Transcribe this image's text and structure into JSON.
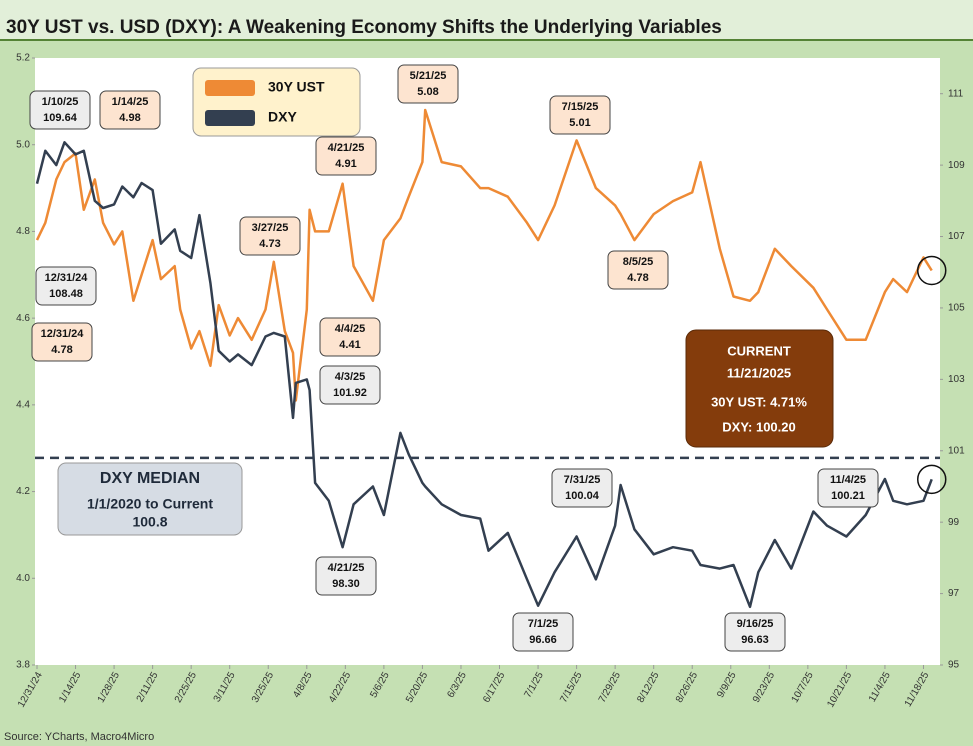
{
  "chart_data": {
    "type": "line",
    "title": "30Y UST vs. USD (DXY): A Weakening Economy Shifts the Underlying Variables",
    "source": "Source: YCharts, Macro4Micro",
    "x": [
      "2024-12-31",
      "2025-01-03",
      "2025-01-07",
      "2025-01-10",
      "2025-01-14",
      "2025-01-17",
      "2025-01-21",
      "2025-01-24",
      "2025-01-28",
      "2025-01-31",
      "2025-02-04",
      "2025-02-07",
      "2025-02-11",
      "2025-02-14",
      "2025-02-19",
      "2025-02-21",
      "2025-02-25",
      "2025-02-28",
      "2025-03-04",
      "2025-03-07",
      "2025-03-11",
      "2025-03-14",
      "2025-03-19",
      "2025-03-24",
      "2025-03-27",
      "2025-03-31",
      "2025-04-03",
      "2025-04-04",
      "2025-04-08",
      "2025-04-09",
      "2025-04-11",
      "2025-04-16",
      "2025-04-21",
      "2025-04-25",
      "2025-05-02",
      "2025-05-06",
      "2025-05-12",
      "2025-05-15",
      "2025-05-20",
      "2025-05-21",
      "2025-05-27",
      "2025-06-03",
      "2025-06-10",
      "2025-06-13",
      "2025-06-20",
      "2025-06-27",
      "2025-07-01",
      "2025-07-07",
      "2025-07-15",
      "2025-07-22",
      "2025-07-29",
      "2025-07-31",
      "2025-08-05",
      "2025-08-12",
      "2025-08-19",
      "2025-08-26",
      "2025-08-29",
      "2025-09-05",
      "2025-09-10",
      "2025-09-16",
      "2025-09-19",
      "2025-09-25",
      "2025-10-01",
      "2025-10-09",
      "2025-10-14",
      "2025-10-21",
      "2025-10-28",
      "2025-11-04",
      "2025-11-07",
      "2025-11-12",
      "2025-11-18",
      "2025-11-21"
    ],
    "series": [
      {
        "name": "30Y UST",
        "color": "#ee8a35",
        "axis": "y",
        "values": [
          4.78,
          4.82,
          4.92,
          4.96,
          4.98,
          4.85,
          4.92,
          4.82,
          4.77,
          4.8,
          4.64,
          4.7,
          4.78,
          4.69,
          4.72,
          4.62,
          4.53,
          4.57,
          4.49,
          4.63,
          4.56,
          4.6,
          4.55,
          4.62,
          4.73,
          4.57,
          4.52,
          4.41,
          4.62,
          4.85,
          4.8,
          4.8,
          4.91,
          4.72,
          4.64,
          4.78,
          4.83,
          4.88,
          4.96,
          5.08,
          4.96,
          4.95,
          4.9,
          4.9,
          4.88,
          4.82,
          4.78,
          4.86,
          5.01,
          4.9,
          4.86,
          4.84,
          4.78,
          4.84,
          4.87,
          4.89,
          4.96,
          4.76,
          4.65,
          4.64,
          4.66,
          4.76,
          4.72,
          4.67,
          4.62,
          4.55,
          4.55,
          4.66,
          4.69,
          4.66,
          4.74,
          4.71
        ]
      },
      {
        "name": "DXY",
        "color": "#333f50",
        "axis": "y2",
        "values": [
          108.48,
          109.4,
          109.0,
          109.64,
          109.3,
          109.4,
          108.0,
          107.8,
          107.9,
          108.4,
          108.1,
          108.5,
          108.3,
          106.8,
          107.2,
          106.6,
          106.4,
          107.6,
          105.7,
          103.8,
          103.5,
          103.7,
          103.4,
          104.2,
          104.3,
          104.2,
          101.92,
          102.9,
          103.0,
          102.7,
          100.1,
          99.6,
          98.3,
          99.5,
          100.0,
          99.2,
          101.5,
          100.9,
          100.1,
          100.0,
          99.5,
          99.2,
          99.1,
          98.2,
          98.7,
          97.4,
          96.66,
          97.6,
          98.6,
          97.4,
          98.9,
          100.04,
          98.8,
          98.1,
          98.3,
          98.2,
          97.8,
          97.7,
          97.8,
          96.63,
          97.6,
          98.5,
          97.7,
          99.3,
          98.9,
          98.6,
          99.2,
          100.21,
          99.6,
          99.5,
          99.6,
          100.2
        ]
      }
    ],
    "xlim": [
      "2024-12-31",
      "2025-11-24"
    ],
    "xticks": [
      {
        "value": "2024-12-31",
        "label": "12/31/24"
      },
      {
        "value": "2025-01-14",
        "label": "1/14/25"
      },
      {
        "value": "2025-01-28",
        "label": "1/28/25"
      },
      {
        "value": "2025-02-11",
        "label": "2/11/25"
      },
      {
        "value": "2025-02-25",
        "label": "2/25/25"
      },
      {
        "value": "2025-03-11",
        "label": "3/11/25"
      },
      {
        "value": "2025-03-25",
        "label": "3/25/25"
      },
      {
        "value": "2025-04-08",
        "label": "4/8/25"
      },
      {
        "value": "2025-04-22",
        "label": "4/22/25"
      },
      {
        "value": "2025-05-06",
        "label": "5/6/25"
      },
      {
        "value": "2025-05-20",
        "label": "5/20/25"
      },
      {
        "value": "2025-06-03",
        "label": "6/3/25"
      },
      {
        "value": "2025-06-17",
        "label": "6/17/25"
      },
      {
        "value": "2025-07-01",
        "label": "7/1/25"
      },
      {
        "value": "2025-07-15",
        "label": "7/15/25"
      },
      {
        "value": "2025-07-29",
        "label": "7/29/25"
      },
      {
        "value": "2025-08-12",
        "label": "8/12/25"
      },
      {
        "value": "2025-08-26",
        "label": "8/26/25"
      },
      {
        "value": "2025-09-09",
        "label": "9/9/25"
      },
      {
        "value": "2025-09-23",
        "label": "9/23/25"
      },
      {
        "value": "2025-10-07",
        "label": "10/7/25"
      },
      {
        "value": "2025-10-21",
        "label": "10/21/25"
      },
      {
        "value": "2025-11-04",
        "label": "11/4/25"
      },
      {
        "value": "2025-11-18",
        "label": "11/18/25"
      }
    ],
    "ylim": [
      3.8,
      5.2
    ],
    "yticks": [
      {
        "value": 3.8,
        "label": "3.8"
      },
      {
        "value": 4.0,
        "label": "4.0"
      },
      {
        "value": 4.2,
        "label": "4.2"
      },
      {
        "value": 4.4,
        "label": "4.4"
      },
      {
        "value": 4.6,
        "label": "4.6"
      },
      {
        "value": 4.8,
        "label": "4.8"
      },
      {
        "value": 5.0,
        "label": "5.0"
      },
      {
        "value": 5.2,
        "label": "5.2"
      }
    ],
    "y2lim": [
      95,
      112
    ],
    "y2ticks": [
      95,
      97,
      99,
      101,
      103,
      105,
      107,
      109,
      111
    ],
    "grid": false,
    "median": {
      "label": "DXY MEDIAN",
      "period": "1/1/2020 to Current",
      "value": 100.8,
      "axis": "y2"
    },
    "current": {
      "title": "CURRENT",
      "date": "11/21/2025",
      "lines": [
        "30Y UST:  4.71%",
        "DXY:  100.20"
      ]
    },
    "annotations": [
      {
        "series": "DXY",
        "lines": [
          "1/10/25",
          "109.64"
        ]
      },
      {
        "series": "30Y UST",
        "lines": [
          "1/14/25",
          "4.98"
        ]
      },
      {
        "series": "DXY",
        "lines": [
          "12/31/24",
          "108.48"
        ]
      },
      {
        "series": "30Y UST",
        "lines": [
          "12/31/24",
          "4.78"
        ]
      },
      {
        "series": "30Y UST",
        "lines": [
          "3/27/25",
          "4.73"
        ]
      },
      {
        "series": "30Y UST",
        "lines": [
          "4/21/25",
          "4.91"
        ]
      },
      {
        "series": "30Y UST",
        "lines": [
          "5/21/25",
          "5.08"
        ]
      },
      {
        "series": "30Y UST",
        "lines": [
          "7/15/25",
          "5.01"
        ]
      },
      {
        "series": "30Y UST",
        "lines": [
          "4/4/25",
          "4.41"
        ]
      },
      {
        "series": "DXY",
        "lines": [
          "4/3/25",
          "101.92"
        ]
      },
      {
        "series": "30Y UST",
        "lines": [
          "8/5/25",
          "4.78"
        ]
      },
      {
        "series": "DXY",
        "lines": [
          "4/21/25",
          "98.30"
        ]
      },
      {
        "series": "DXY",
        "lines": [
          "7/1/25",
          "96.66"
        ]
      },
      {
        "series": "DXY",
        "lines": [
          "7/31/25",
          "100.04"
        ]
      },
      {
        "series": "DXY",
        "lines": [
          "9/16/25",
          "96.63"
        ]
      },
      {
        "series": "DXY",
        "lines": [
          "11/4/25",
          "100.21"
        ]
      }
    ]
  }
}
